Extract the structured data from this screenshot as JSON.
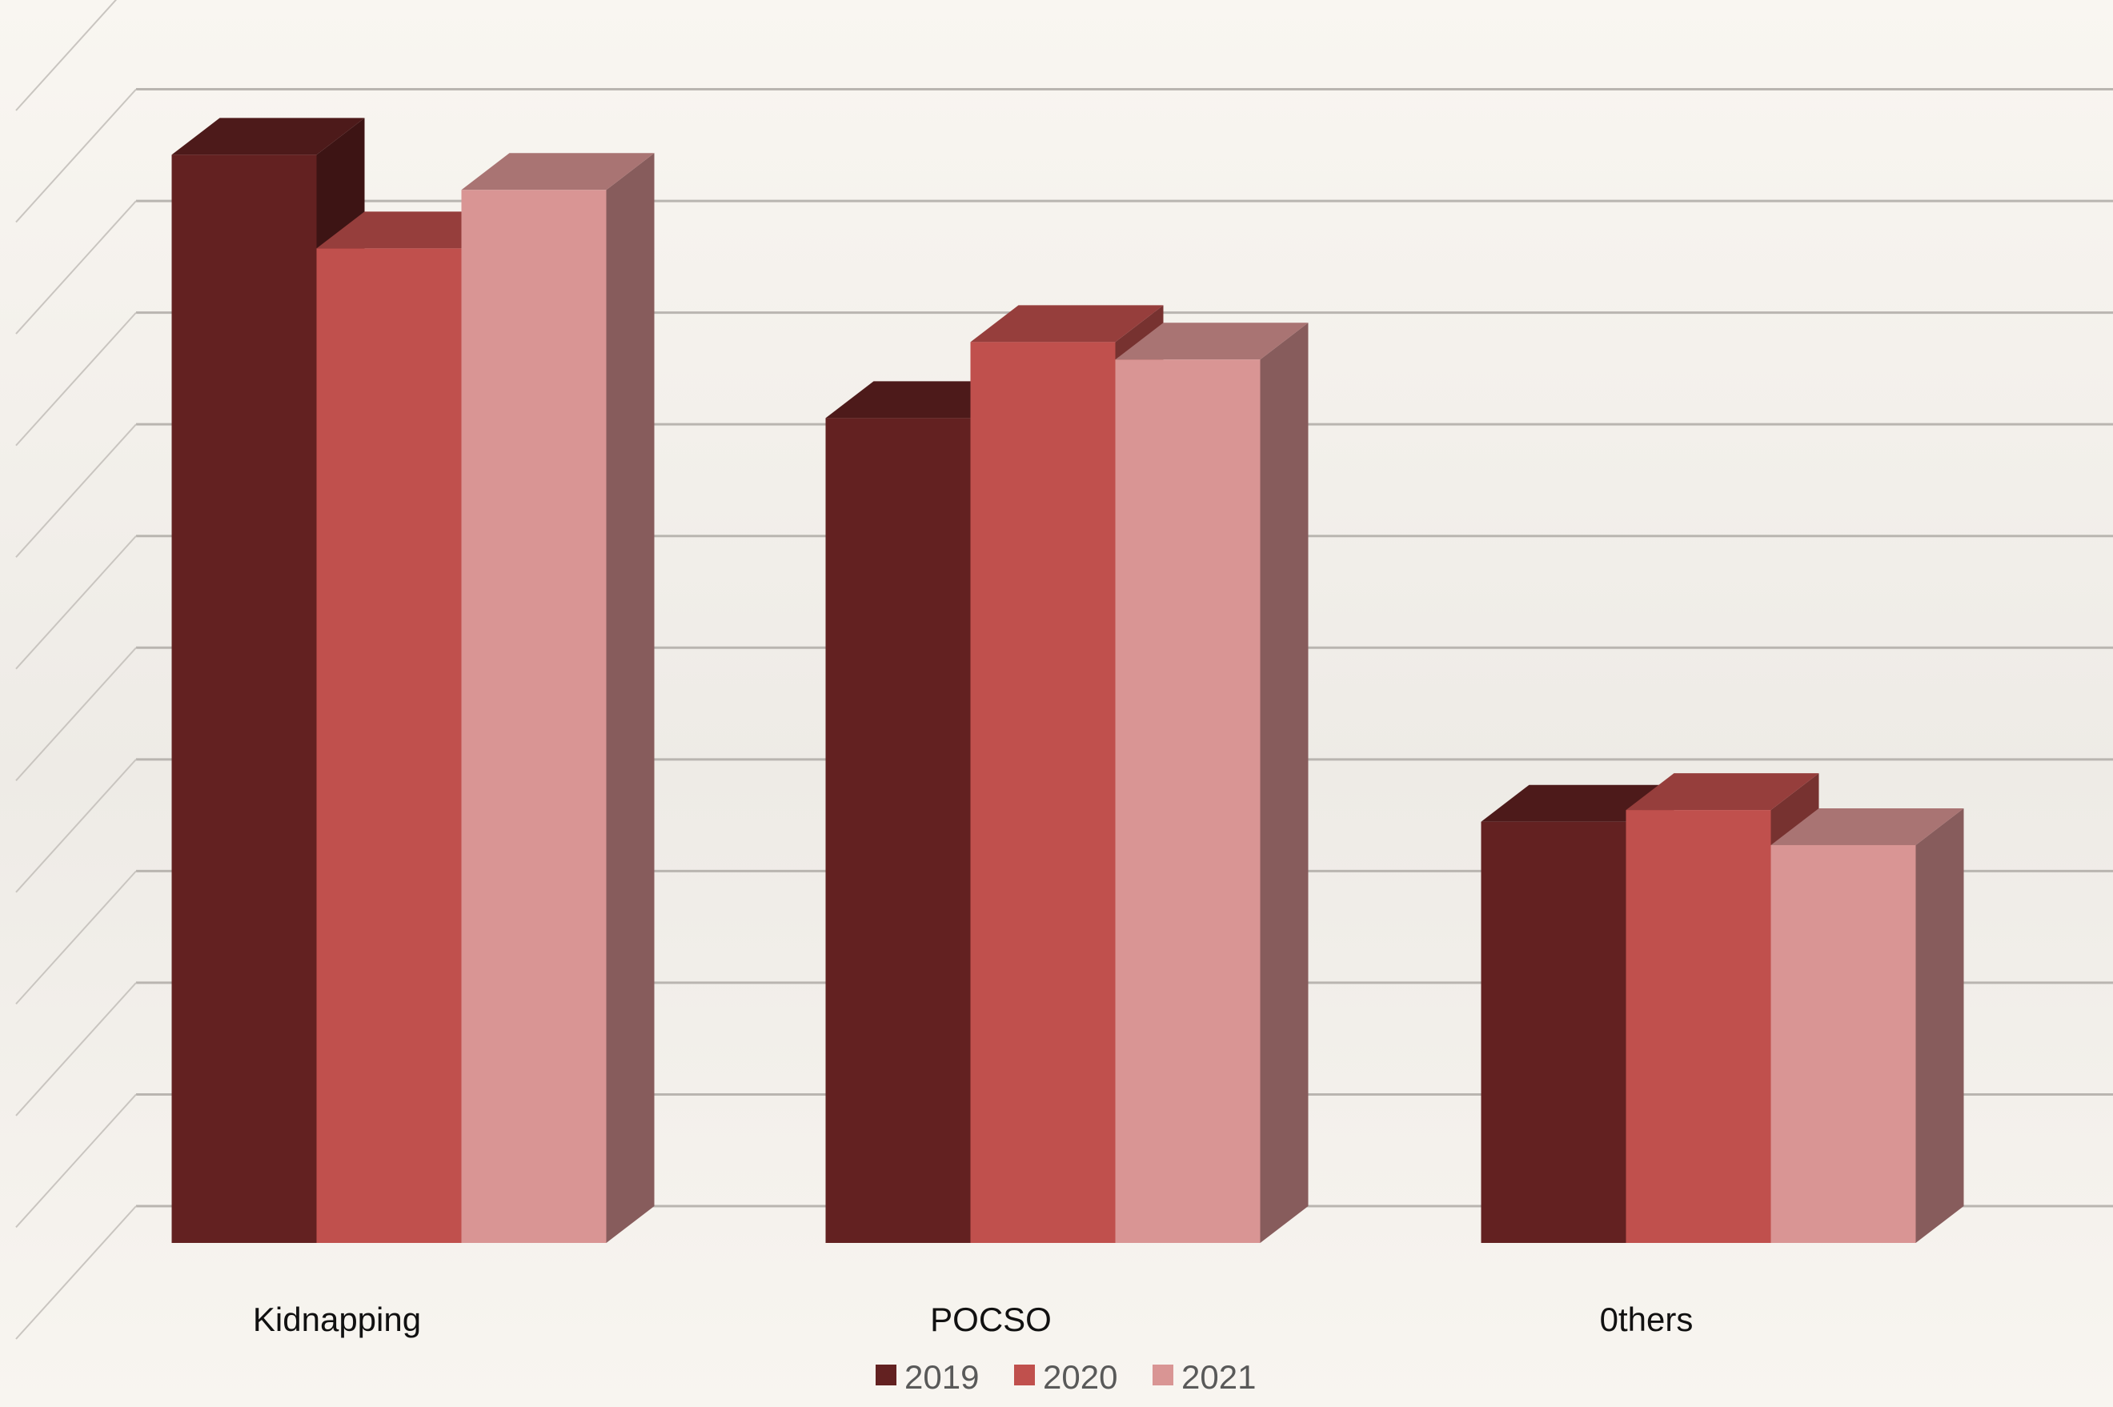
{
  "chart_data": {
    "type": "bar",
    "style": "3d-clustered-column",
    "categories": [
      "Kidnapping",
      "POCSO",
      "0thers"
    ],
    "series": [
      {
        "name": "2019",
        "values": [
          9.3,
          7.05,
          3.6
        ],
        "color": "#632121"
      },
      {
        "name": "2020",
        "values": [
          8.5,
          7.7,
          3.7
        ],
        "color": "#c0504d"
      },
      {
        "name": "2021",
        "values": [
          9.0,
          7.55,
          3.4
        ],
        "color": "#d99594"
      }
    ],
    "ylim": [
      0,
      10.5
    ],
    "gridlines": true,
    "ytick_labels_shown": false,
    "legend": {
      "position": "bottom",
      "entries": [
        "2019",
        "2020",
        "2021"
      ]
    }
  }
}
